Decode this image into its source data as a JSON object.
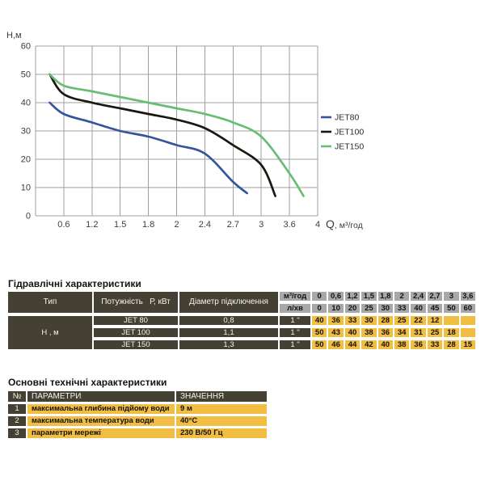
{
  "chart": {
    "ylabel": "Н,м",
    "xlabel_q": "Q",
    "xlabel_unit": ", м³/год"
  },
  "chart_data": {
    "type": "line",
    "title": "",
    "xlabel": "Q, м³/год",
    "ylabel": "Н,м",
    "ylim": [
      0,
      60
    ],
    "grid": true,
    "legend_position": "right",
    "y_ticks": [
      60,
      50,
      40,
      30,
      20,
      10,
      0
    ],
    "x_categories": [
      0,
      0.6,
      1.2,
      1.5,
      1.8,
      2,
      2.4,
      2.7,
      3,
      3.6,
      4
    ],
    "x_tick_labels": [
      "0.6",
      "1.2",
      "1.5",
      "1.8",
      "2",
      "2.4",
      "2.7",
      "3",
      "3.6",
      "4"
    ],
    "series": [
      {
        "name": "JET80",
        "color": "#34549c",
        "points": [
          [
            0,
            40
          ],
          [
            0.6,
            36
          ],
          [
            1.2,
            33
          ],
          [
            1.5,
            30
          ],
          [
            1.8,
            28
          ],
          [
            2,
            25
          ],
          [
            2.4,
            22
          ],
          [
            2.7,
            12
          ],
          [
            2.85,
            8
          ]
        ]
      },
      {
        "name": "JET100",
        "color": "#1c160e",
        "points": [
          [
            0,
            50
          ],
          [
            0.6,
            43
          ],
          [
            1.2,
            40
          ],
          [
            1.5,
            38
          ],
          [
            1.8,
            36
          ],
          [
            2,
            34
          ],
          [
            2.4,
            31
          ],
          [
            2.7,
            25
          ],
          [
            3,
            18
          ],
          [
            3.3,
            7
          ]
        ]
      },
      {
        "name": "JET150",
        "color": "#67bd72",
        "points": [
          [
            0,
            50
          ],
          [
            0.6,
            46
          ],
          [
            1.2,
            44
          ],
          [
            1.5,
            42
          ],
          [
            1.8,
            40
          ],
          [
            2,
            38
          ],
          [
            2.4,
            36
          ],
          [
            2.7,
            33
          ],
          [
            3,
            28
          ],
          [
            3.6,
            15
          ],
          [
            3.8,
            7
          ]
        ]
      }
    ]
  },
  "hydraulic_table": {
    "title": "Гідравлічні характеристики",
    "col_type": "Тип",
    "col_power": "Потужність   Р, кВт",
    "col_diameter": "Діаметр підключення",
    "flow_label": "м³/год",
    "flow_values": [
      "0",
      "0,6",
      "1,2",
      "1,5",
      "1,8",
      "2",
      "2,4",
      "2,7",
      "3",
      "3,6"
    ],
    "lmin_label": "л/хв",
    "lmin_values": [
      "0",
      "10",
      "20",
      "25",
      "30",
      "33",
      "40",
      "45",
      "50",
      "60"
    ],
    "head_label": "Н , м",
    "rows": [
      {
        "type": "JET 80",
        "power": "0,8",
        "diameter": "1 \"",
        "heads": [
          "40",
          "36",
          "33",
          "30",
          "28",
          "25",
          "22",
          "12",
          "",
          ""
        ]
      },
      {
        "type": "JET 100",
        "power": "1,1",
        "diameter": "1 \"",
        "heads": [
          "50",
          "43",
          "40",
          "38",
          "36",
          "34",
          "31",
          "25",
          "18",
          ""
        ]
      },
      {
        "type": "JET 150",
        "power": "1,3",
        "diameter": "1 \"",
        "heads": [
          "50",
          "46",
          "44",
          "42",
          "40",
          "38",
          "36",
          "33",
          "28",
          "15"
        ]
      }
    ]
  },
  "tech_table": {
    "title": "Основні технічні характеристики",
    "col_num": "№",
    "col_param": "ПАРАМЕТРИ",
    "col_value": "ЗНАЧЕННЯ",
    "rows": [
      {
        "num": "1",
        "param": "максимальна глибина підйому води",
        "value": "9 м"
      },
      {
        "num": "2",
        "param": "максимальна температура води",
        "value": "40°С"
      },
      {
        "num": "3",
        "param": "параметри мережі",
        "value": "230 В/50 Гц"
      }
    ]
  },
  "colors": {
    "table_dark": "#454034",
    "table_gray": "#a8a8a8",
    "table_yellow": "#f1bd42",
    "grid_line": "#9f9f9f",
    "tick_text": "#3c3c3c"
  }
}
